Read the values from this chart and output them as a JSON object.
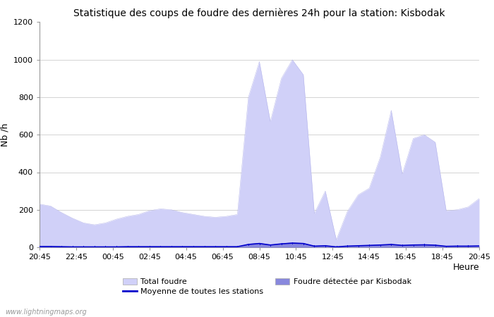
{
  "title": "Statistique des coups de foudre des dernières 24h pour la station: Kisbodak",
  "xlabel": "Heure",
  "ylabel": "Nb /h",
  "ylim": [
    0,
    1200
  ],
  "yticks": [
    0,
    200,
    400,
    600,
    800,
    1000,
    1200
  ],
  "x_labels": [
    "20:45",
    "22:45",
    "00:45",
    "02:45",
    "04:45",
    "06:45",
    "08:45",
    "10:45",
    "12:45",
    "14:45",
    "16:45",
    "18:45",
    "20:45"
  ],
  "total_foudre_color": "#d0d0f8",
  "total_foudre_edge": "#b0b0e8",
  "kisbodak_color": "#8888dd",
  "moyenne_color": "#0000cc",
  "background_color": "#ffffff",
  "grid_color": "#cccccc",
  "watermark": "www.lightningmaps.org",
  "total_foudre": [
    230,
    220,
    185,
    155,
    130,
    120,
    130,
    150,
    165,
    175,
    195,
    205,
    200,
    185,
    175,
    165,
    160,
    165,
    175,
    800,
    990,
    670,
    900,
    1000,
    920,
    180,
    300,
    40,
    190,
    280,
    315,
    480,
    730,
    390,
    580,
    600,
    560,
    195,
    200,
    215,
    260
  ],
  "kisbodak": [
    5,
    5,
    4,
    3,
    3,
    3,
    3,
    3,
    4,
    4,
    4,
    4,
    4,
    4,
    4,
    4,
    4,
    4,
    4,
    20,
    25,
    15,
    22,
    28,
    24,
    8,
    10,
    3,
    8,
    10,
    12,
    15,
    18,
    12,
    15,
    16,
    14,
    7,
    8,
    8,
    9
  ],
  "moyenne": [
    4,
    4,
    3,
    2,
    2,
    2,
    2,
    2,
    3,
    3,
    3,
    3,
    3,
    3,
    3,
    3,
    3,
    3,
    3,
    15,
    20,
    12,
    18,
    22,
    20,
    6,
    8,
    2,
    6,
    8,
    10,
    12,
    15,
    10,
    12,
    13,
    11,
    5,
    6,
    6,
    7
  ]
}
